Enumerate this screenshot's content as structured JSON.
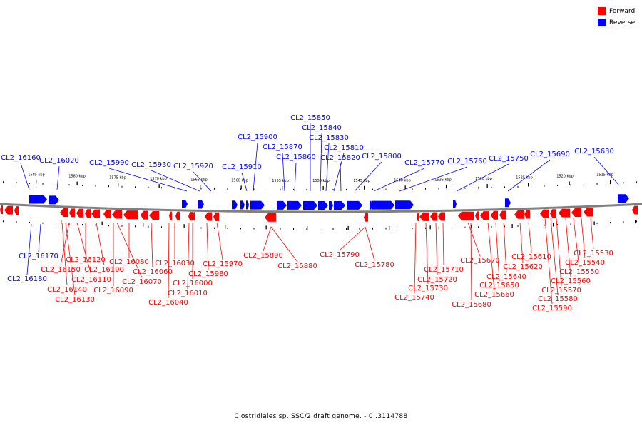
{
  "legend": {
    "forward_label": "Forward",
    "reverse_label": "Reverse",
    "forward_color": "#ff0000",
    "reverse_color": "#0000ff"
  },
  "caption": "Clostridiales sp. SSC/2 draft genome. - 0..3114788",
  "colors": {
    "axis": "#808080",
    "leader_forward": "#ff0000",
    "leader_reverse": "#0000ff",
    "ticks": "#000000"
  },
  "scale_labels": [
    "1585 kbp",
    "1580 kbp",
    "1575 kbp",
    "1570 kbp",
    "1565 kbp",
    "1560 kbp",
    "1555 kbp",
    "1550 kbp",
    "1545 kbp",
    "1540 kbp",
    "1535 kbp",
    "1530 kbp",
    "1525 kbp",
    "1520 kbp",
    "1515 kbp"
  ],
  "genes": {
    "reverse": [
      "CL2_16160",
      "CL2_16020",
      "CL2_15990",
      "CL2_15930",
      "CL2_15920",
      "CL2_15910",
      "CL2_15900",
      "CL2_15870",
      "CL2_15860",
      "CL2_15850",
      "CL2_15840",
      "CL2_15830",
      "CL2_15810",
      "CL2_15820",
      "CL2_15800",
      "CL2_15770",
      "CL2_15760",
      "CL2_15750",
      "CL2_15690",
      "CL2_15630",
      "CL2_16170",
      "CL2_16180"
    ],
    "forward": [
      "CL2_16120",
      "CL2_16150",
      "CL2_16110",
      "CL2_16100",
      "CL2_16140",
      "CL2_16130",
      "CL2_16090",
      "CL2_16080",
      "CL2_16070",
      "CL2_16060",
      "CL2_16030",
      "CL2_16000",
      "CL2_16010",
      "CL2_16040",
      "CL2_15970",
      "CL2_15980",
      "CL2_15890",
      "CL2_15880",
      "CL2_15790",
      "CL2_15780",
      "CL2_15710",
      "CL2_15720",
      "CL2_15730",
      "CL2_15740",
      "CL2_15670",
      "CL2_15680",
      "CL2_15650",
      "CL2_15660",
      "CL2_15640",
      "CL2_15610",
      "CL2_15620",
      "CL2_15530",
      "CL2_15540",
      "CL2_15550",
      "CL2_15560",
      "CL2_15570",
      "CL2_15580",
      "CL2_15590"
    ]
  }
}
